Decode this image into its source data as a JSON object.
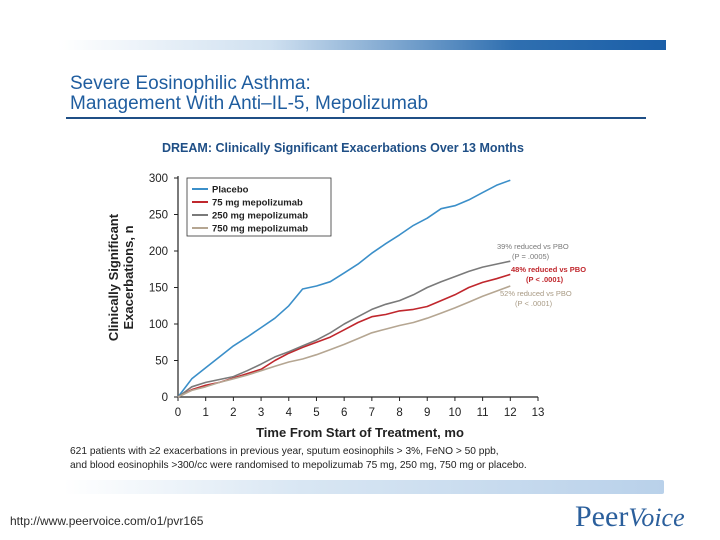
{
  "header": {
    "title_line1": "Severe Eosinophilic Asthma:",
    "title_line2": "Management With Anti–IL-5, Mepolizumab"
  },
  "footnote": {
    "line1": "621 patients with ≥2 exacerbations in previous year, sputum eosinophils > 3%, FeNO > 50 ppb,",
    "line2": "and blood eosinophils >300/cc were randomised to mepolizumab 75 mg, 250 mg, 750 mg or placebo."
  },
  "footer": {
    "url": "http://www.peervoice.com/o1/pvr165",
    "logo_part1": "Peer",
    "logo_part2": "Voice"
  },
  "colors": {
    "placebo": "#3b8fc9",
    "mg75": "#c0272d",
    "mg250": "#7a7a7a",
    "mg750": "#b5a692"
  },
  "chart_data": {
    "type": "line",
    "title": "DREAM: Clinically Significant Exacerbations Over 13 Months",
    "xlabel": "Time From Start of Treatment, mo",
    "ylabel_line1": "Clinically Significant",
    "ylabel_line2": "Exacerbations, n",
    "xlim": [
      0,
      13
    ],
    "ylim": [
      0,
      300
    ],
    "xticks": [
      0,
      1,
      2,
      3,
      4,
      5,
      6,
      7,
      8,
      9,
      10,
      11,
      12,
      13
    ],
    "yticks": [
      0,
      50,
      100,
      150,
      200,
      250,
      300
    ],
    "legend_position": "top-left",
    "series": [
      {
        "name": "Placebo",
        "color": "#3b8fc9",
        "x": [
          0,
          0.5,
          1,
          1.5,
          2,
          2.5,
          3,
          3.5,
          4,
          4.5,
          5,
          5.5,
          6,
          6.5,
          7,
          7.5,
          8,
          8.5,
          9,
          9.5,
          10,
          10.5,
          11,
          11.5,
          12
        ],
        "y": [
          0,
          25,
          40,
          55,
          70,
          82,
          95,
          108,
          125,
          148,
          152,
          158,
          170,
          182,
          197,
          210,
          222,
          235,
          245,
          258,
          262,
          270,
          280,
          290,
          297
        ]
      },
      {
        "name": "75 mg mepolizumab",
        "color": "#c0272d",
        "x": [
          0,
          0.5,
          1,
          1.5,
          2,
          2.5,
          3,
          3.5,
          4,
          4.5,
          5,
          5.5,
          6,
          6.5,
          7,
          7.5,
          8,
          8.5,
          9,
          9.5,
          10,
          10.5,
          11,
          11.5,
          12
        ],
        "y": [
          0,
          10,
          16,
          20,
          26,
          32,
          38,
          50,
          60,
          68,
          75,
          82,
          92,
          102,
          110,
          113,
          118,
          120,
          124,
          132,
          140,
          150,
          157,
          162,
          168
        ]
      },
      {
        "name": "250 mg mepolizumab",
        "color": "#7a7a7a",
        "x": [
          0,
          0.5,
          1,
          1.5,
          2,
          2.5,
          3,
          3.5,
          4,
          4.5,
          5,
          5.5,
          6,
          6.5,
          7,
          7.5,
          8,
          8.5,
          9,
          9.5,
          10,
          10.5,
          11,
          11.5,
          12
        ],
        "y": [
          0,
          14,
          20,
          24,
          28,
          36,
          45,
          55,
          62,
          70,
          78,
          88,
          100,
          110,
          120,
          127,
          132,
          140,
          150,
          158,
          165,
          172,
          178,
          182,
          186
        ]
      },
      {
        "name": "750 mg mepolizumab",
        "color": "#b5a692",
        "x": [
          0,
          0.5,
          1,
          1.5,
          2,
          2.5,
          3,
          3.5,
          4,
          4.5,
          5,
          5.5,
          6,
          6.5,
          7,
          7.5,
          8,
          8.5,
          9,
          9.5,
          10,
          10.5,
          11,
          11.5,
          12
        ],
        "y": [
          0,
          9,
          14,
          20,
          25,
          30,
          36,
          42,
          48,
          52,
          58,
          65,
          72,
          80,
          88,
          93,
          98,
          102,
          108,
          115,
          122,
          130,
          138,
          145,
          152
        ]
      }
    ],
    "annotations": [
      {
        "line1": "39% reduced vs PBO",
        "line2": "(P = .0005)",
        "color": "#7a7a7a",
        "bold": false
      },
      {
        "line1": "48% reduced vs PBO",
        "line2": "(P < .0001)",
        "color": "#c0272d",
        "bold": true
      },
      {
        "line1": "52% reduced vs PBO",
        "line2": "(P < .0001)",
        "color": "#a89a84",
        "bold": false
      }
    ]
  }
}
